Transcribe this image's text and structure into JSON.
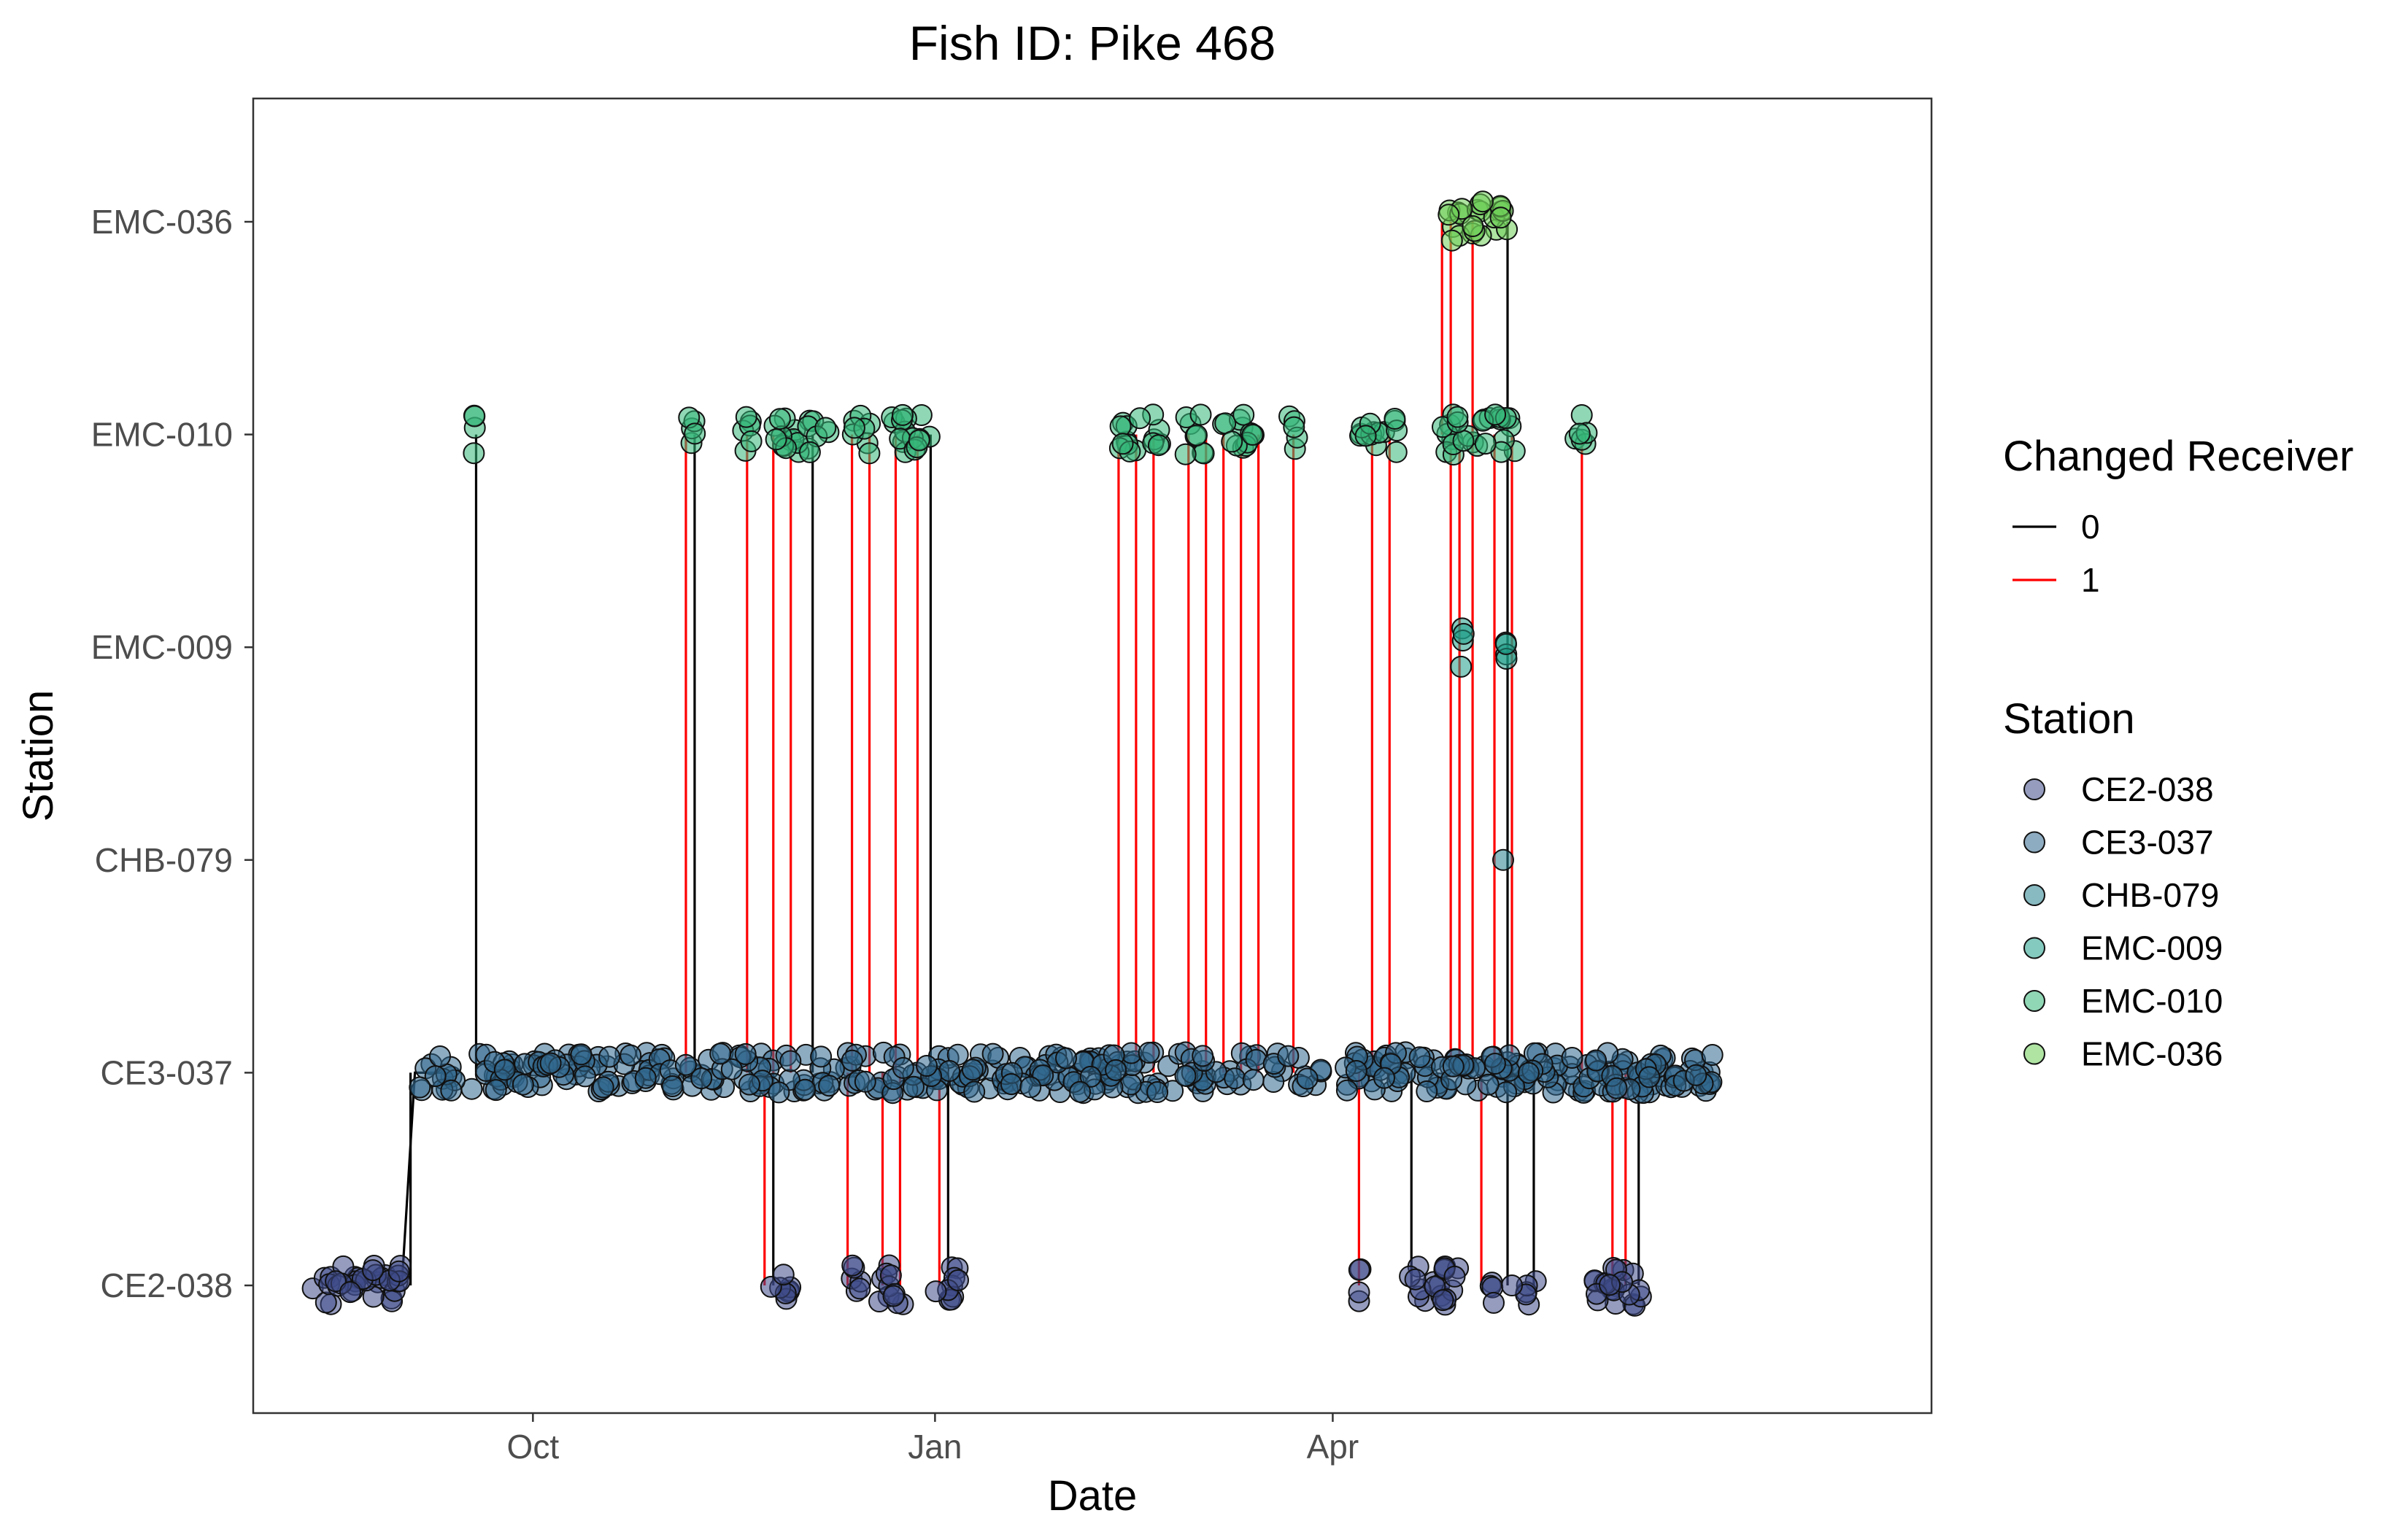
{
  "chart_data": {
    "type": "scatter",
    "title": "Fish ID: Pike 468",
    "xlabel": "Date",
    "ylabel": "Station",
    "xlim": [
      "2019-07-29",
      "2020-08-16"
    ],
    "x_ticks": [
      {
        "date": "2019-10-01",
        "label": "Oct"
      },
      {
        "date": "2020-01-01",
        "label": "Jan"
      },
      {
        "date": "2020-04-01",
        "label": "Apr"
      }
    ],
    "y_categories": [
      "CE2-038",
      "CE3-037",
      "CHB-079",
      "EMC-009",
      "EMC-010",
      "EMC-036"
    ],
    "grid": false,
    "legend_position": "right",
    "legends": {
      "changed_receiver": {
        "title": "Changed Receiver",
        "entries": [
          {
            "label": "0",
            "color": "#000000"
          },
          {
            "label": "1",
            "color": "#ff0000"
          }
        ]
      },
      "station": {
        "title": "Station",
        "entries": [
          {
            "label": "CE2-038",
            "color": "#3e4a89"
          },
          {
            "label": "CE3-037",
            "color": "#31688e"
          },
          {
            "label": "CHB-079",
            "color": "#26828e"
          },
          {
            "label": "EMC-009",
            "color": "#1f9e89"
          },
          {
            "label": "EMC-010",
            "color": "#35b779"
          },
          {
            "label": "EMC-036",
            "color": "#6ece58"
          }
        ]
      }
    },
    "detection_clusters": [
      {
        "station": "CE2-038",
        "ranges": [
          [
            "2019-08-11",
            "2019-09-01"
          ],
          [
            "2019-11-24",
            "2019-11-29"
          ],
          [
            "2019-12-12",
            "2019-12-16"
          ],
          [
            "2019-12-19",
            "2019-12-26"
          ],
          [
            "2020-01-01",
            "2020-01-07"
          ],
          [
            "2020-04-07",
            "2020-04-08"
          ],
          [
            "2020-04-18",
            "2020-04-30"
          ],
          [
            "2020-05-07",
            "2020-05-08"
          ],
          [
            "2020-05-15",
            "2020-05-18"
          ],
          [
            "2020-05-29",
            "2020-06-11"
          ]
        ]
      },
      {
        "station": "CE3-037",
        "ranges": [
          [
            "2019-09-05",
            "2020-06-27"
          ]
        ]
      },
      {
        "station": "EMC-009",
        "ranges": [
          [
            "2020-04-30",
            "2020-05-01"
          ],
          [
            "2020-05-10",
            "2020-05-11"
          ]
        ]
      },
      {
        "station": "EMC-010",
        "ranges": [
          [
            "2019-09-17",
            "2019-09-18"
          ],
          [
            "2019-11-05",
            "2019-11-08"
          ],
          [
            "2019-11-18",
            "2019-11-22"
          ],
          [
            "2019-11-25",
            "2019-12-08"
          ],
          [
            "2019-12-13",
            "2019-12-18"
          ],
          [
            "2019-12-22",
            "2020-01-01"
          ],
          [
            "2020-02-12",
            "2020-02-22"
          ],
          [
            "2020-02-27",
            "2020-03-03"
          ],
          [
            "2020-03-06",
            "2020-03-14"
          ],
          [
            "2020-03-22",
            "2020-03-25"
          ],
          [
            "2020-04-07",
            "2020-04-16"
          ],
          [
            "2020-04-26",
            "2020-05-13"
          ],
          [
            "2020-05-26",
            "2020-05-30"
          ]
        ]
      },
      {
        "station": "EMC-036",
        "ranges": [
          [
            "2020-04-26",
            "2020-05-11"
          ]
        ]
      }
    ],
    "transitions": [
      {
        "date": "2019-09-03",
        "from": "CE2-038",
        "to": "CE3-037",
        "changed": 0
      },
      {
        "date": "2019-09-18",
        "from": "CE3-037",
        "to": "EMC-010",
        "changed": 0
      },
      {
        "date": "2019-11-05",
        "from": "CE3-037",
        "to": "EMC-010",
        "changed": 1
      },
      {
        "date": "2019-11-07",
        "from": "CE3-037",
        "to": "EMC-010",
        "changed": 0
      },
      {
        "date": "2019-11-19",
        "from": "CE3-037",
        "to": "EMC-010",
        "changed": 1
      },
      {
        "date": "2019-11-25",
        "from": "CE3-037",
        "to": "EMC-010",
        "changed": 1
      },
      {
        "date": "2019-11-29",
        "from": "CE3-037",
        "to": "EMC-010",
        "changed": 1
      },
      {
        "date": "2019-12-04",
        "from": "CE3-037",
        "to": "EMC-010",
        "changed": 0
      },
      {
        "date": "2019-12-13",
        "from": "CE3-037",
        "to": "EMC-010",
        "changed": 1
      },
      {
        "date": "2019-12-17",
        "from": "CE3-037",
        "to": "EMC-010",
        "changed": 1
      },
      {
        "date": "2019-12-23",
        "from": "CE3-037",
        "to": "EMC-010",
        "changed": 1
      },
      {
        "date": "2019-12-28",
        "from": "CE3-037",
        "to": "EMC-010",
        "changed": 1
      },
      {
        "date": "2019-12-31",
        "from": "CE3-037",
        "to": "EMC-010",
        "changed": 0
      },
      {
        "date": "2019-11-23",
        "from": "CE3-037",
        "to": "CE2-038",
        "changed": 1
      },
      {
        "date": "2019-11-25",
        "from": "CE3-037",
        "to": "CE2-038",
        "changed": 0
      },
      {
        "date": "2019-12-12",
        "from": "CE3-037",
        "to": "CE2-038",
        "changed": 1
      },
      {
        "date": "2019-12-20",
        "from": "CE3-037",
        "to": "CE2-038",
        "changed": 1
      },
      {
        "date": "2019-12-24",
        "from": "CE3-037",
        "to": "CE2-038",
        "changed": 1
      },
      {
        "date": "2020-01-02",
        "from": "CE3-037",
        "to": "CE2-038",
        "changed": 1
      },
      {
        "date": "2020-01-04",
        "from": "CE3-037",
        "to": "CE2-038",
        "changed": 0
      },
      {
        "date": "2020-02-12",
        "from": "CE3-037",
        "to": "EMC-010",
        "changed": 1
      },
      {
        "date": "2020-02-16",
        "from": "CE3-037",
        "to": "EMC-010",
        "changed": 1
      },
      {
        "date": "2020-02-20",
        "from": "CE3-037",
        "to": "EMC-010",
        "changed": 1
      },
      {
        "date": "2020-02-28",
        "from": "CE3-037",
        "to": "EMC-010",
        "changed": 1
      },
      {
        "date": "2020-03-03",
        "from": "CE3-037",
        "to": "EMC-010",
        "changed": 1
      },
      {
        "date": "2020-03-07",
        "from": "CE3-037",
        "to": "EMC-010",
        "changed": 1
      },
      {
        "date": "2020-03-11",
        "from": "CE3-037",
        "to": "EMC-010",
        "changed": 1
      },
      {
        "date": "2020-03-15",
        "from": "CE3-037",
        "to": "EMC-010",
        "changed": 1
      },
      {
        "date": "2020-03-23",
        "from": "CE3-037",
        "to": "EMC-010",
        "changed": 1
      },
      {
        "date": "2020-04-07",
        "from": "CE3-037",
        "to": "CE2-038",
        "changed": 1
      },
      {
        "date": "2020-04-10",
        "from": "CE3-037",
        "to": "EMC-010",
        "changed": 1
      },
      {
        "date": "2020-04-14",
        "from": "CE3-037",
        "to": "EMC-010",
        "changed": 1
      },
      {
        "date": "2020-04-19",
        "from": "CE3-037",
        "to": "CE2-038",
        "changed": 0
      },
      {
        "date": "2020-04-26",
        "from": "EMC-010",
        "to": "EMC-036",
        "changed": 1
      },
      {
        "date": "2020-04-28",
        "from": "CE3-037",
        "to": "EMC-036",
        "changed": 1
      },
      {
        "date": "2020-04-30",
        "from": "CE3-037",
        "to": "EMC-010",
        "changed": 1
      },
      {
        "date": "2020-05-03",
        "from": "CE3-037",
        "to": "EMC-036",
        "changed": 1
      },
      {
        "date": "2020-05-05",
        "from": "CE3-037",
        "to": "CE2-038",
        "changed": 1
      },
      {
        "date": "2020-05-08",
        "from": "CE3-037",
        "to": "EMC-010",
        "changed": 1
      },
      {
        "date": "2020-05-11",
        "from": "CE2-038",
        "to": "EMC-036",
        "changed": 0
      },
      {
        "date": "2020-05-12",
        "from": "CE3-037",
        "to": "EMC-010",
        "changed": 1
      },
      {
        "date": "2020-05-17",
        "from": "CE3-037",
        "to": "CE2-038",
        "changed": 0
      },
      {
        "date": "2020-05-28",
        "from": "CE3-037",
        "to": "EMC-010",
        "changed": 1
      },
      {
        "date": "2020-06-04",
        "from": "CE3-037",
        "to": "CE2-038",
        "changed": 1
      },
      {
        "date": "2020-06-07",
        "from": "CE3-037",
        "to": "CE2-038",
        "changed": 1
      },
      {
        "date": "2020-06-10",
        "from": "CE3-037",
        "to": "CE2-038",
        "changed": 0
      }
    ]
  }
}
